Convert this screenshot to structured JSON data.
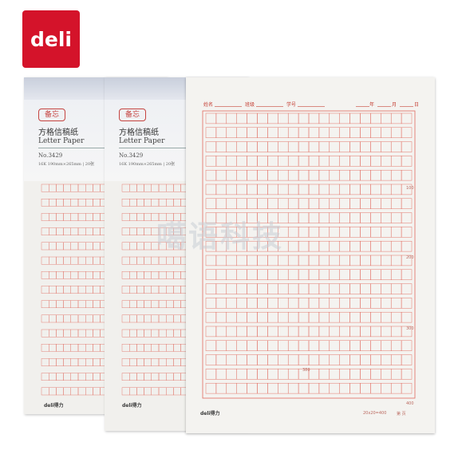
{
  "brand": {
    "logo_text": "deli",
    "footer_text": "deli得力",
    "color": "#d4132a"
  },
  "cover": {
    "stamp": "备忘",
    "title_cn": "方格信稿纸",
    "title_en": "Letter Paper",
    "model": "No.3429",
    "spec": "16K 190mm×265mm | 20张"
  },
  "sheet": {
    "name_label": "姓名",
    "class_label": "班级",
    "student_no_label": "学号",
    "year_label": "年",
    "month_label": "月",
    "day_label": "日",
    "counts": [
      "100",
      "200",
      "300",
      "380",
      "400"
    ],
    "footer_spec": "20x20=400",
    "footer_page": "第    页"
  },
  "watermark": "噶语科技",
  "colors": {
    "grid": "#e06a5e",
    "paper": "#f4f3f0"
  }
}
